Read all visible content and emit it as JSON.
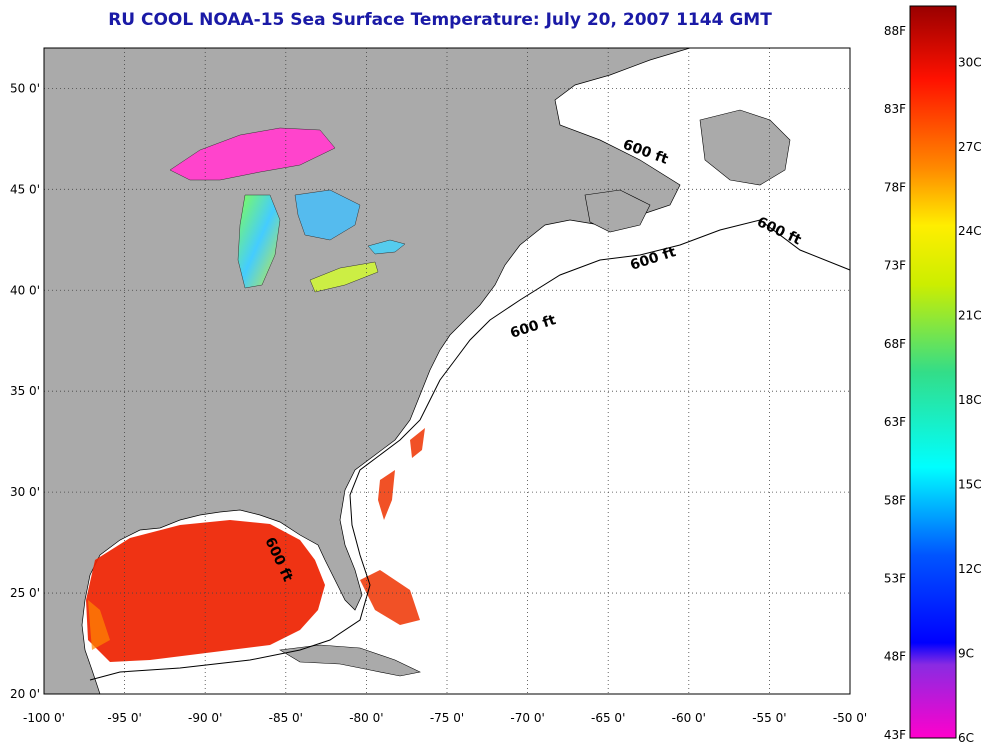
{
  "title": "RU COOL  NOAA-15  Sea Surface Temperature:  July 20, 2007 1144 GMT",
  "map": {
    "lon_range": [
      -100,
      -50
    ],
    "lat_range": [
      20,
      52
    ],
    "lon_ticks": [
      "-100 0'",
      "-95 0'",
      "-90 0'",
      "-85 0'",
      "-80 0'",
      "-75 0'",
      "-70 0'",
      "-65 0'",
      "-60 0'",
      "-55 0'",
      "-50 0'"
    ],
    "lat_ticks": [
      "20 0'",
      "25 0'",
      "30 0'",
      "35 0'",
      "40 0'",
      "45 0'",
      "50 0'"
    ],
    "contour_label": "600 ft",
    "contour_labels": [
      "600 ft",
      "600 ft",
      "600 ft",
      "600 ft",
      "600 ft"
    ],
    "colors": {
      "land": "#aaaaaa",
      "ocean": "#ffffff",
      "title": "#1a1aa6"
    }
  },
  "colorbar": {
    "celsius": [
      "6C",
      "9C",
      "12C",
      "15C",
      "18C",
      "21C",
      "24C",
      "27C",
      "30C"
    ],
    "fahrenheit": [
      "43F",
      "48F",
      "53F",
      "58F",
      "63F",
      "68F",
      "73F",
      "78F",
      "83F",
      "88F"
    ],
    "range_c": [
      6,
      32
    ]
  }
}
